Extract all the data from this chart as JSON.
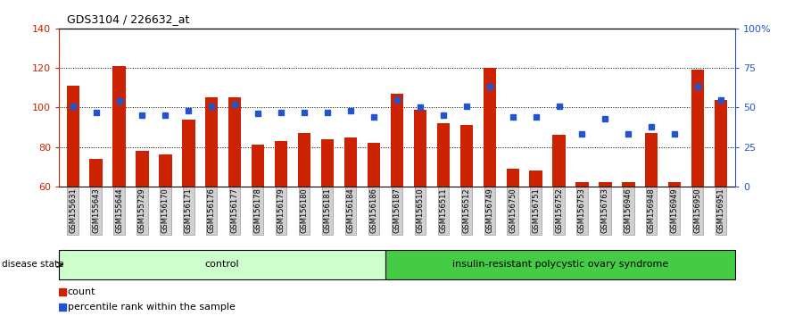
{
  "title": "GDS3104 / 226632_at",
  "samples": [
    "GSM155631",
    "GSM155643",
    "GSM155644",
    "GSM155729",
    "GSM156170",
    "GSM156171",
    "GSM156176",
    "GSM156177",
    "GSM156178",
    "GSM156179",
    "GSM156180",
    "GSM156181",
    "GSM156184",
    "GSM156186",
    "GSM156187",
    "GSM156510",
    "GSM156511",
    "GSM156512",
    "GSM156749",
    "GSM156750",
    "GSM156751",
    "GSM156752",
    "GSM156753",
    "GSM156763",
    "GSM156946",
    "GSM156948",
    "GSM156949",
    "GSM156950",
    "GSM156951"
  ],
  "bar_values": [
    111,
    74,
    121,
    78,
    76,
    94,
    105,
    105,
    81,
    83,
    87,
    84,
    85,
    82,
    107,
    99,
    92,
    91,
    120,
    69,
    68,
    86,
    62,
    62,
    62,
    87,
    62,
    119,
    104
  ],
  "dot_values_pct": [
    51,
    47,
    54,
    45,
    45,
    48,
    51,
    52,
    46,
    47,
    47,
    47,
    48,
    44,
    55,
    50,
    45,
    51,
    63,
    44,
    44,
    51,
    33,
    43,
    33,
    38,
    33,
    63,
    55
  ],
  "control_count": 14,
  "disease_state_label": "disease state",
  "group1_label": "control",
  "group2_label": "insulin-resistant polycystic ovary syndrome",
  "ylim_left": [
    60,
    140
  ],
  "ylim_right": [
    0,
    100
  ],
  "yticks_left": [
    60,
    80,
    100,
    120,
    140
  ],
  "yticks_right": [
    0,
    25,
    50,
    75,
    100
  ],
  "yticklabels_right": [
    "0",
    "25",
    "50",
    "75",
    "100%"
  ],
  "bar_color": "#cc2200",
  "dot_color": "#2255cc",
  "axis_left_color": "#cc2200",
  "axis_right_color": "#2255cc",
  "grid_color": "black",
  "bg_color": "#ffffff",
  "legend_count_label": "count",
  "legend_pct_label": "percentile rank within the sample",
  "group1_bg": "#ccffcc",
  "group2_bg": "#44cc44",
  "bar_bottom": 60
}
